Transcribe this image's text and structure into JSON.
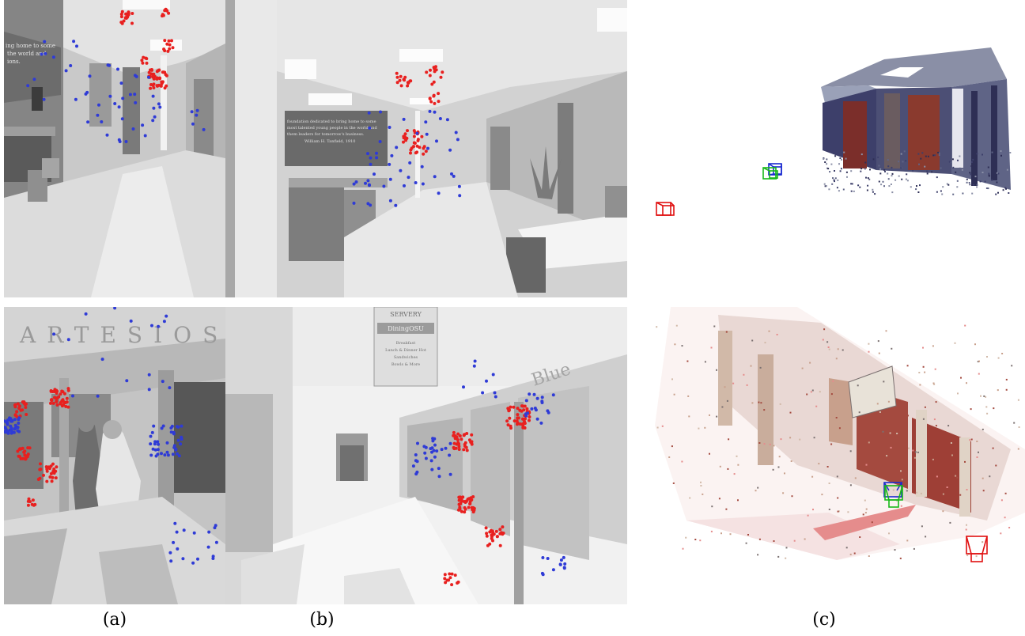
{
  "figure": {
    "captions": {
      "a": "(a)",
      "b": "(b)",
      "c": "(c)"
    },
    "top_row": {
      "left_sign_text": [
        "ing home to some",
        "the world and",
        "ions."
      ],
      "right_sign_text": [
        "foundation dedicated to bring home to some",
        "most talented young people in the world and",
        "them leaders for tomorrow's business.",
        "William H. Tanfield, 1910"
      ]
    },
    "bottom_row": {
      "hanging_sign_text": [
        "SERVERY",
        "DiningOSU",
        "Breakfast",
        "Lunch & Dinner Hot",
        "Sandwiches",
        "Bowls & More"
      ],
      "wall_lettering": "ARTESIOS",
      "wall_lettering_right": "Blue"
    },
    "colors": {
      "feature_red": "#e8201f",
      "feature_blue": "#2f3bd6",
      "camera_red": "#e01010",
      "camera_green": "#18b818",
      "camera_blue": "#1a2ad0"
    }
  }
}
